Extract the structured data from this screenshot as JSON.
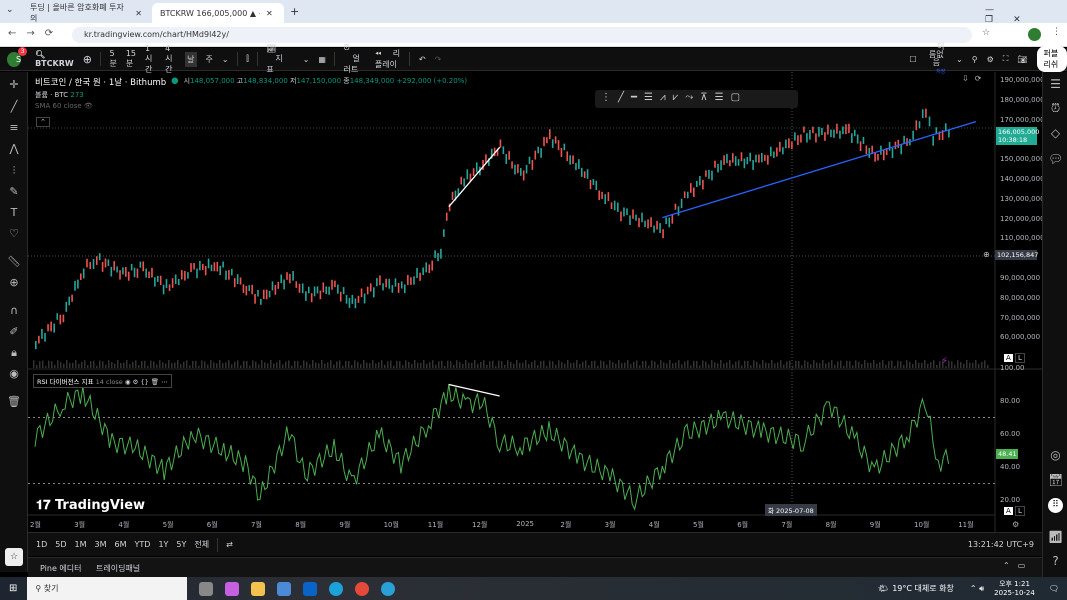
{
  "browser": {
    "tabs": [
      {
        "title": "투딩 | 올바른 암호화폐 투자의"
      },
      {
        "title": "BTCKRW 166,005,000 ▲ +0.3"
      }
    ],
    "url": "kr.tradingview.com/chart/HMd9l42y/"
  },
  "toolbar": {
    "symbol": "BTCKRW",
    "notif_count": "3",
    "avatar": "S",
    "intervals": [
      "5분",
      "15분",
      "1시간",
      "4시간",
      "날",
      "주"
    ],
    "active_interval": "날",
    "indicators": "지표",
    "alert": "얼러트",
    "replay": "리플레이",
    "layout_name": "이름없음",
    "layout_sub": "저장",
    "publish": "퍼블리쉬"
  },
  "legend": {
    "title": "비트코인 / 한국 원 · 1날 · Bithumb",
    "o_label": "시",
    "o": "148,057,000",
    "h_label": "고",
    "h": "148,834,000",
    "l_label": "저",
    "l": "147,150,000",
    "c_label": "종",
    "c": "148,349,000",
    "change": "+292,000 (+0.20%)",
    "volume_label": "볼륨 · BTC",
    "volume": "273",
    "sma": "SMA 60 close",
    "rsi_label": "RSI 다이버전스 지표",
    "rsi_params": "14 close"
  },
  "price_axis": {
    "ticks": [
      "190,000,000",
      "180,000,000",
      "170,000,000",
      "150,000,000",
      "140,000,000",
      "130,000,000",
      "120,000,000",
      "110,000,000",
      "90,000,000",
      "80,000,000",
      "70,000,000",
      "60,000,000"
    ],
    "last_price": "166,005,000",
    "countdown": "10:38:18",
    "crosshair_price": "102,156,847",
    "last_price_color": "#22ab94"
  },
  "rsi_axis": {
    "ticks": [
      "100.00",
      "80.00",
      "60.00",
      "40.00",
      "20.00"
    ],
    "last": "48.41",
    "color": "#4caf50"
  },
  "time_axis": {
    "ticks": [
      "2월",
      "3월",
      "4월",
      "5월",
      "6월",
      "7월",
      "8월",
      "9월",
      "10월",
      "11월",
      "12월",
      "2025",
      "2월",
      "3월",
      "4월",
      "5월",
      "6월",
      "7월",
      "8월",
      "9월",
      "10월",
      "11월"
    ],
    "crosshair": "화 2025-07-08"
  },
  "ranges": [
    "1D",
    "5D",
    "1M",
    "3M",
    "6M",
    "YTD",
    "1Y",
    "5Y",
    "전체"
  ],
  "clock": "13:21:42 UTC+9",
  "pine_tabs": [
    "Pine 에디터",
    "트레이딩패널"
  ],
  "watermark": "TradingView",
  "taskbar": {
    "search": "찾기",
    "weather": "19°C 대체로 화창",
    "time": "오후 1:21",
    "date": "2025-10-24"
  },
  "chart_data": {
    "type": "line",
    "x_unit": "date",
    "y_unit": "KRW",
    "price": {
      "dates": [
        "2024-02-01",
        "2024-02-20",
        "2024-03-05",
        "2024-03-14",
        "2024-04-01",
        "2024-04-15",
        "2024-05-01",
        "2024-05-20",
        "2024-06-05",
        "2024-06-25",
        "2024-07-05",
        "2024-07-25",
        "2024-08-05",
        "2024-08-25",
        "2024-09-06",
        "2024-09-25",
        "2024-10-10",
        "2024-10-29",
        "2024-11-06",
        "2024-11-12",
        "2024-11-22",
        "2024-12-05",
        "2024-12-17",
        "2024-12-31",
        "2025-01-20",
        "2025-02-05",
        "2025-02-25",
        "2025-03-10",
        "2025-04-08",
        "2025-04-25",
        "2025-05-20",
        "2025-06-15",
        "2025-07-14",
        "2025-08-14",
        "2025-09-01",
        "2025-09-25",
        "2025-10-06",
        "2025-10-11",
        "2025-10-24"
      ],
      "values": [
        58000000.0,
        72000000.0,
        95000000.0,
        100000000.0,
        93000000.0,
        95000000.0,
        86000000.0,
        95000000.0,
        97000000.0,
        86000000.0,
        80000000.0,
        92000000.0,
        82000000.0,
        86000000.0,
        78000000.0,
        88000000.0,
        86000000.0,
        96000000.0,
        105000000.0,
        128000000.0,
        140000000.0,
        148000000.0,
        157000000.0,
        142000000.0,
        162000000.0,
        150000000.0,
        133000000.0,
        124000000.0,
        115000000.0,
        133000000.0,
        150000000.0,
        150000000.0,
        163000000.0,
        165000000.0,
        152000000.0,
        160000000.0,
        176000000.0,
        162000000.0,
        166000000.0
      ]
    },
    "rsi": {
      "dates": [
        "2024-02-01",
        "2024-02-20",
        "2024-03-05",
        "2024-03-25",
        "2024-04-10",
        "2024-04-30",
        "2024-05-20",
        "2024-06-10",
        "2024-06-25",
        "2024-07-05",
        "2024-07-25",
        "2024-08-05",
        "2024-08-25",
        "2024-09-06",
        "2024-09-25",
        "2024-10-10",
        "2024-10-29",
        "2024-11-12",
        "2024-11-25",
        "2024-12-05",
        "2024-12-17",
        "2024-12-31",
        "2025-01-20",
        "2025-02-10",
        "2025-03-03",
        "2025-03-20",
        "2025-04-08",
        "2025-04-25",
        "2025-05-20",
        "2025-06-15",
        "2025-07-14",
        "2025-08-01",
        "2025-08-20",
        "2025-09-01",
        "2025-09-25",
        "2025-10-06",
        "2025-10-15",
        "2025-10-24"
      ],
      "values": [
        58,
        78,
        85,
        55,
        52,
        38,
        60,
        50,
        42,
        22,
        62,
        35,
        52,
        30,
        60,
        42,
        66,
        85,
        78,
        80,
        55,
        52,
        62,
        45,
        35,
        20,
        40,
        60,
        70,
        62,
        55,
        78,
        55,
        38,
        60,
        80,
        42,
        48
      ]
    },
    "levels": [
      70,
      30
    ],
    "trendlines": [
      {
        "pane": "price",
        "color": "#2962ff",
        "from": [
          "2025-04-08",
          120500000.0
        ],
        "to": [
          "2025-11-10",
          169000000.0
        ]
      },
      {
        "pane": "price",
        "color": "#ffffff",
        "from": [
          "2024-11-12",
          126000000.0
        ],
        "to": [
          "2024-12-17",
          156000000.0
        ]
      },
      {
        "pane": "rsi",
        "color": "#ffffff",
        "from": [
          "2024-11-12",
          90
        ],
        "to": [
          "2024-12-17",
          83
        ]
      }
    ]
  }
}
